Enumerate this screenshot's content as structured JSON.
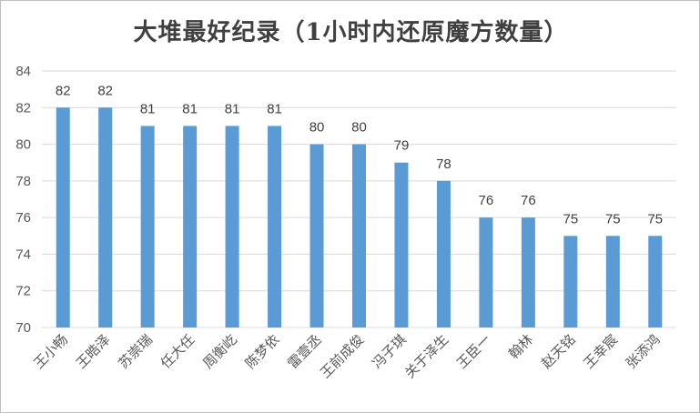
{
  "chart_data": {
    "type": "bar",
    "title": "大堆最好纪录（1小时内还原魔方数量）",
    "categories": [
      "王小畅",
      "王晧泽",
      "苏崇瑞",
      "任大任",
      "周衡屹",
      "陈梦依",
      "雷壹丞",
      "王前成俊",
      "冯子琪",
      "关于泽生",
      "王臣一",
      "翰林",
      "赵天铭",
      "王幸宸",
      "张添鸿"
    ],
    "values": [
      82,
      82,
      81,
      81,
      81,
      81,
      80,
      80,
      79,
      78,
      76,
      76,
      75,
      75,
      75
    ],
    "ylim": [
      70,
      84
    ],
    "yticks": [
      70,
      72,
      74,
      76,
      78,
      80,
      82,
      84
    ],
    "grid": true,
    "bar_color": "#5b9bd5",
    "xlabel": "",
    "ylabel": ""
  }
}
